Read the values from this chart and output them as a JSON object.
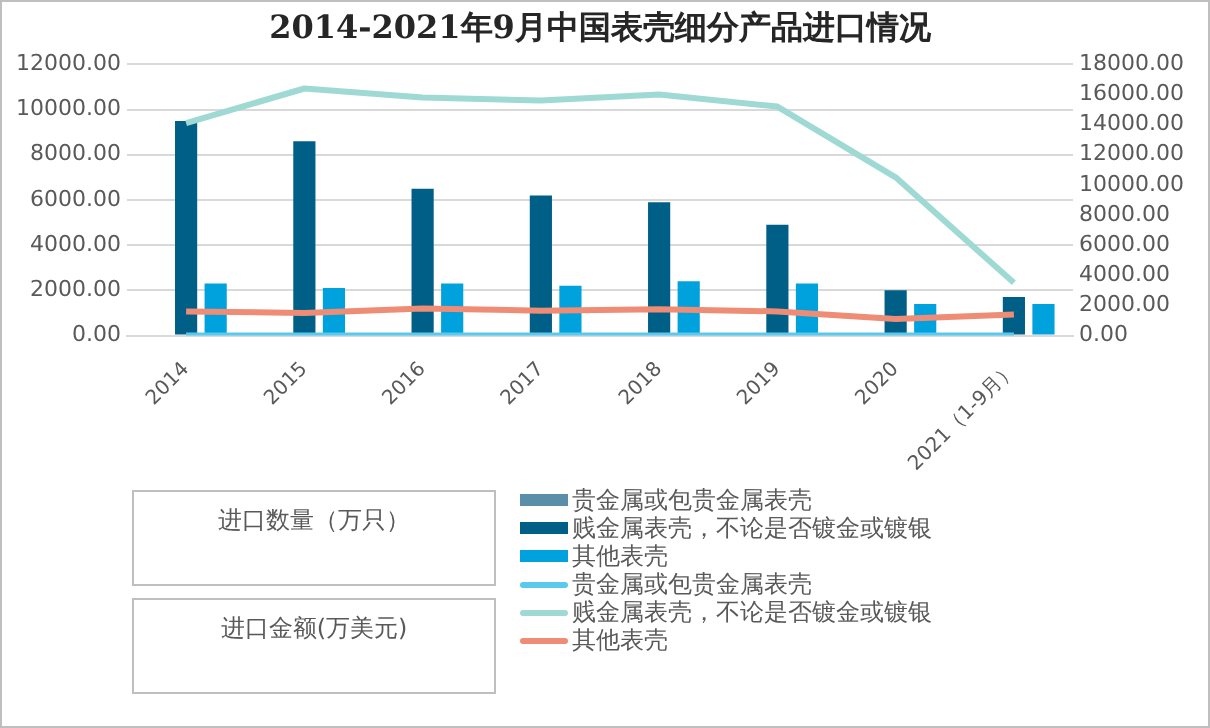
{
  "chart_data": {
    "type": "bar",
    "title": "2014-2021年9月中国表壳细分产品进口情况",
    "annotations": [
      "进口数量（万只）",
      "进口金额(万美元)"
    ],
    "categories": [
      "2014",
      "2015",
      "2016",
      "2017",
      "2018",
      "2019",
      "2020",
      "2021（1-9月）"
    ],
    "series": [
      {
        "name": "贵金属或包贵金属表壳",
        "color": "#5b8fa8",
        "values": [
          0,
          0,
          0,
          0,
          0,
          0,
          0,
          0
        ]
      },
      {
        "name": "贱金属表壳，不论是否镀金或镀银",
        "color": "#005f86",
        "values": [
          9500,
          8600,
          6500,
          6200,
          5900,
          4900,
          2000,
          1700
        ]
      },
      {
        "name": "其他表壳",
        "color": "#00a2de",
        "values": [
          2300,
          2100,
          2300,
          2200,
          2400,
          2300,
          1400,
          1400
        ]
      },
      {
        "name": "贵金属或包贵金属表壳",
        "type": "line",
        "axis": "y2",
        "color": "#5bc8ee",
        "values": [
          0,
          0,
          0,
          0,
          0,
          0,
          0,
          0
        ]
      },
      {
        "name": "贱金属表壳，不论是否镀金或镀银",
        "type": "line",
        "axis": "y2",
        "color": "#9fd9d3",
        "values": [
          14100,
          16400,
          15800,
          15600,
          16000,
          15200,
          10500,
          3500
        ]
      },
      {
        "name": "其他表壳",
        "type": "line",
        "axis": "y2",
        "color": "#ee8c76",
        "values": [
          1600,
          1500,
          1800,
          1650,
          1750,
          1600,
          1100,
          1400
        ]
      }
    ],
    "ylim": [
      0,
      12000
    ],
    "yticks": [
      {
        "value": 0,
        "label": "0.00"
      },
      {
        "value": 2000,
        "label": "2000.00"
      },
      {
        "value": 4000,
        "label": "4000.00"
      },
      {
        "value": 6000,
        "label": "6000.00"
      },
      {
        "value": 8000,
        "label": "8000.00"
      },
      {
        "value": 10000,
        "label": "10000.00"
      },
      {
        "value": 12000,
        "label": "12000.00"
      }
    ],
    "y2lim": [
      0,
      18000
    ],
    "y2ticks": [
      {
        "value": 0,
        "label": "0.00"
      },
      {
        "value": 2000,
        "label": "2000.00"
      },
      {
        "value": 4000,
        "label": "4000.00"
      },
      {
        "value": 6000,
        "label": "6000.00"
      },
      {
        "value": 8000,
        "label": "8000.00"
      },
      {
        "value": 10000,
        "label": "10000.00"
      },
      {
        "value": 12000,
        "label": "12000.00"
      },
      {
        "value": 14000,
        "label": "14000.00"
      },
      {
        "value": 16000,
        "label": "16000.00"
      },
      {
        "value": 18000,
        "label": "18000.00"
      }
    ],
    "grid": "y",
    "legend": "bottom",
    "marker": "none",
    "line_style": "solid"
  }
}
